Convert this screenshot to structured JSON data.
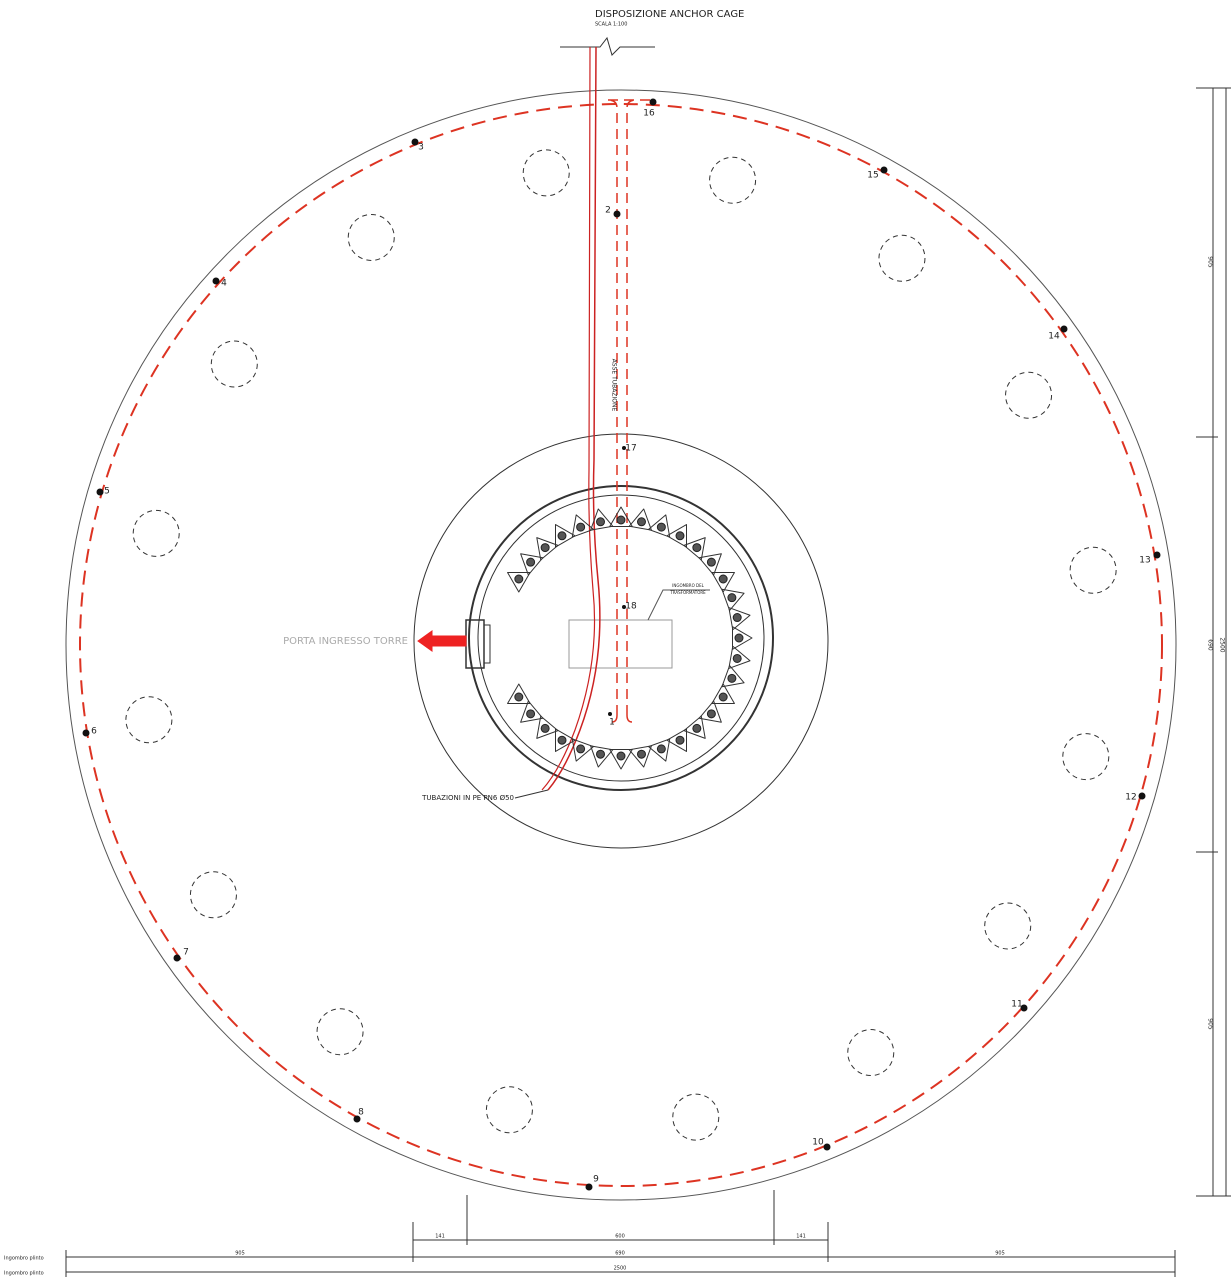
{
  "title": "DISPOSIZIONE ANCHOR CAGE",
  "scale": "SCALA 1:100",
  "points": [
    "1",
    "2",
    "3",
    "4",
    "5",
    "6",
    "7",
    "8",
    "9",
    "10",
    "11",
    "12",
    "13",
    "14",
    "15",
    "16",
    "17",
    "18"
  ],
  "labels": {
    "door": "PORTA INGRESSO TORRE",
    "pipes": "TUBAZIONI IN PE PN6 Ø50",
    "axis": "ASSE TUBAZIONE",
    "transformer": [
      "INGOMBRO DEL",
      "TRASFORMATORE"
    ]
  },
  "dimensions": {
    "right": [
      "905",
      "690",
      "905",
      "2500"
    ],
    "bottom": {
      "row1": [
        "141",
        "600",
        "141"
      ],
      "row2": [
        "905",
        "690",
        "905"
      ],
      "row3": [
        "2500"
      ]
    },
    "legend": [
      "Ingombro plinto",
      "Ingombro plinto"
    ]
  }
}
